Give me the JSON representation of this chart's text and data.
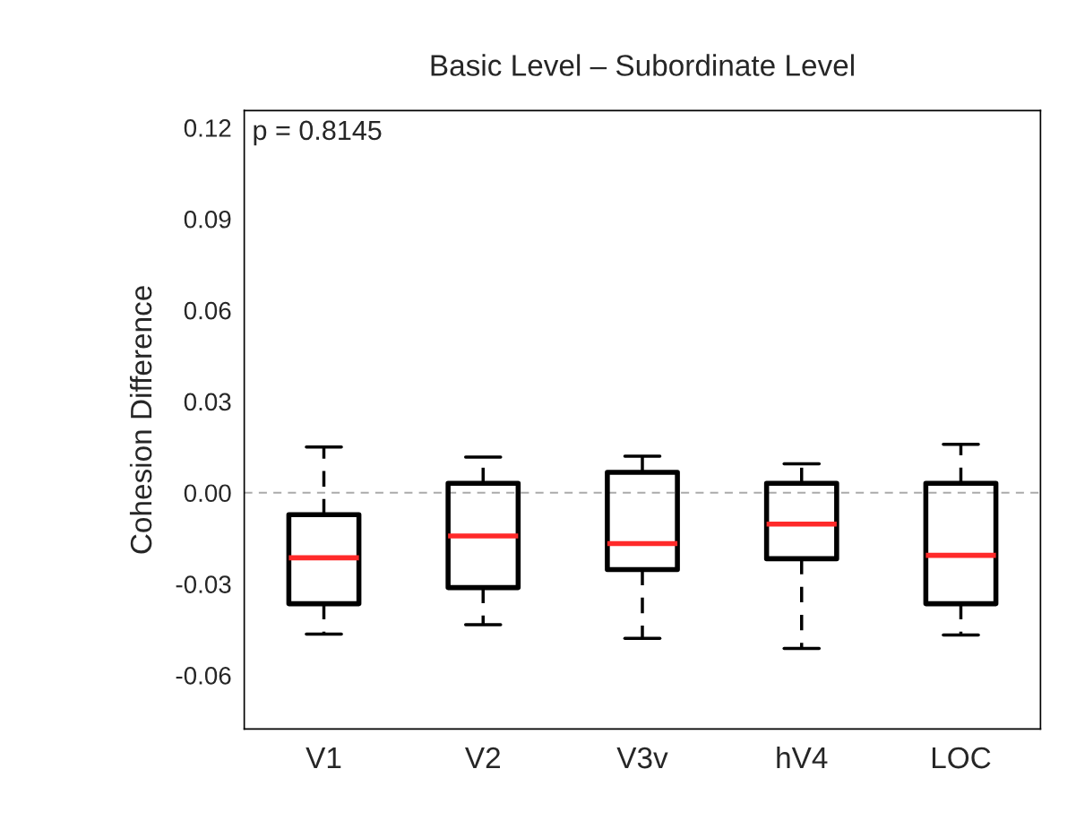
{
  "chart_data": {
    "type": "box",
    "title": "Basic Level – Subordinate Level",
    "ylabel": "Cohesion Difference",
    "categories": [
      "V1",
      "V2",
      "V3v",
      "hV4",
      "LOC"
    ],
    "boxes": [
      {
        "low": -0.0465,
        "q1": -0.0365,
        "median": -0.0214,
        "q3": -0.0072,
        "high": 0.015
      },
      {
        "low": -0.0434,
        "q1": -0.0312,
        "median": -0.0142,
        "q3": 0.0031,
        "high": 0.0117
      },
      {
        "low": -0.0479,
        "q1": -0.0253,
        "median": -0.0167,
        "q3": 0.0067,
        "high": 0.012
      },
      {
        "low": -0.0512,
        "q1": -0.0217,
        "median": -0.0103,
        "q3": 0.0031,
        "high": 0.0095
      },
      {
        "low": -0.0468,
        "q1": -0.0365,
        "median": -0.0206,
        "q3": 0.0031,
        "high": 0.0159
      }
    ],
    "color": "#000000",
    "line_style": "dashed",
    "ylim": [
      -0.0777,
      0.1256
    ],
    "yticks": [
      {
        "value": -0.06,
        "label": "-0.06"
      },
      {
        "value": -0.03,
        "label": "-0.03"
      },
      {
        "value": 0,
        "label": "0.00"
      },
      {
        "value": 0.03,
        "label": "0.03"
      },
      {
        "value": 0.06,
        "label": "0.06"
      },
      {
        "value": 0.09,
        "label": "0.09"
      },
      {
        "value": 0.12,
        "label": "0.12"
      }
    ],
    "ref_lines": [
      {
        "axis": "y",
        "value": 0,
        "color": "#aaaaaa",
        "line_style": "dashed"
      }
    ],
    "annotations": [
      "p = 0.8145"
    ],
    "grid": false
  }
}
